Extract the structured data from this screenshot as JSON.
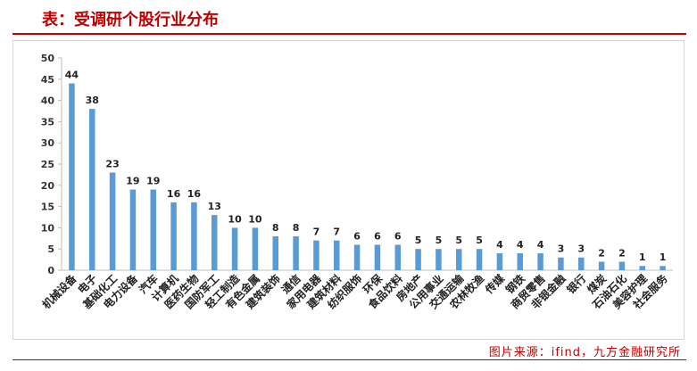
{
  "header": {
    "title": "表：受调研个股行业分布"
  },
  "footer": {
    "source": "图片来源：ifind，九方金融研究所"
  },
  "colors": {
    "bar": "#5b9bd5",
    "title": "#c00000",
    "axis": "#333333"
  },
  "chart_data": {
    "type": "bar",
    "title": "",
    "xlabel": "",
    "ylabel": "",
    "ylim": [
      0,
      50
    ],
    "yticks": [
      0,
      5,
      10,
      15,
      20,
      25,
      30,
      35,
      40,
      45,
      50
    ],
    "grid": false,
    "legend": "none",
    "categories": [
      "机械设备",
      "电子",
      "基础化工",
      "电力设备",
      "汽车",
      "计算机",
      "医药生物",
      "国防军工",
      "轻工制造",
      "有色金属",
      "建筑装饰",
      "通信",
      "家用电器",
      "建筑材料",
      "纺织服饰",
      "环保",
      "食品饮料",
      "房地产",
      "公用事业",
      "交通运输",
      "农林牧渔",
      "传媒",
      "钢铁",
      "商贸零售",
      "非银金融",
      "银行",
      "煤炭",
      "石油石化",
      "美容护理",
      "社会服务"
    ],
    "values": [
      44,
      38,
      23,
      19,
      19,
      16,
      16,
      13,
      10,
      10,
      8,
      8,
      7,
      7,
      6,
      6,
      6,
      5,
      5,
      5,
      5,
      4,
      4,
      4,
      3,
      3,
      2,
      2,
      1,
      1
    ]
  }
}
